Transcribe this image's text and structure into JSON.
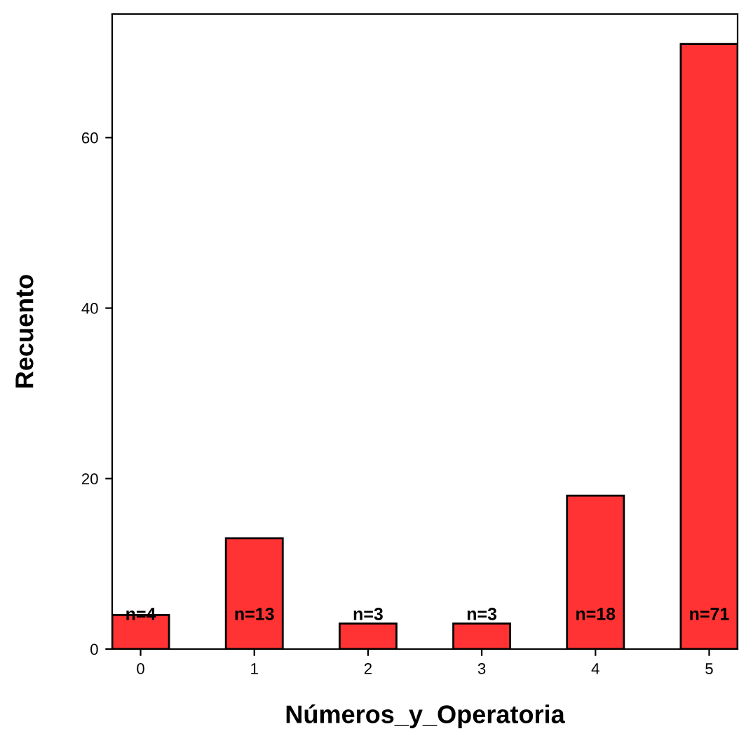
{
  "chart_data": {
    "type": "bar",
    "xlabel": "Números_y_Operatoria",
    "ylabel": "Recuento",
    "categories": [
      "0",
      "1",
      "2",
      "3",
      "4",
      "5"
    ],
    "values": [
      4,
      13,
      3,
      3,
      18,
      71
    ],
    "value_labels": [
      "n=4",
      "n=13",
      "n=3",
      "n=3",
      "n=18",
      "n=71"
    ],
    "color": "#ff3333",
    "ylim": [
      0,
      74.5
    ],
    "yticks": [
      0,
      20,
      40,
      60
    ],
    "grid": false
  }
}
